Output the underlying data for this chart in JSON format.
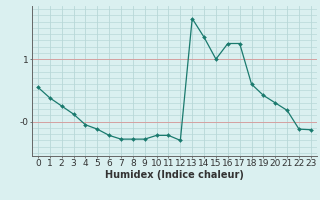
{
  "x": [
    0,
    1,
    2,
    3,
    4,
    5,
    6,
    7,
    8,
    9,
    10,
    11,
    12,
    13,
    14,
    15,
    16,
    17,
    18,
    19,
    20,
    21,
    22,
    23
  ],
  "y": [
    0.55,
    0.38,
    0.25,
    0.12,
    -0.05,
    -0.12,
    -0.22,
    -0.28,
    -0.28,
    -0.28,
    -0.22,
    -0.22,
    -0.3,
    1.65,
    1.35,
    1.0,
    1.25,
    1.25,
    0.6,
    0.42,
    0.3,
    0.18,
    -0.12,
    -0.13
  ],
  "line_color": "#1a7a6e",
  "marker": "D",
  "marker_size": 2.0,
  "background_color": "#daf0f0",
  "grid_color": "#b8d8d8",
  "grid_red_color": "#d4a0a0",
  "xlabel": "Humidex (Indice chaleur)",
  "xlabel_fontsize": 7,
  "ytick_vals": [
    0.0,
    1.0
  ],
  "ytick_labels": [
    "-0",
    "1"
  ],
  "ylim": [
    -0.55,
    1.85
  ],
  "xlim": [
    -0.5,
    23.5
  ],
  "tick_fontsize": 6.5
}
